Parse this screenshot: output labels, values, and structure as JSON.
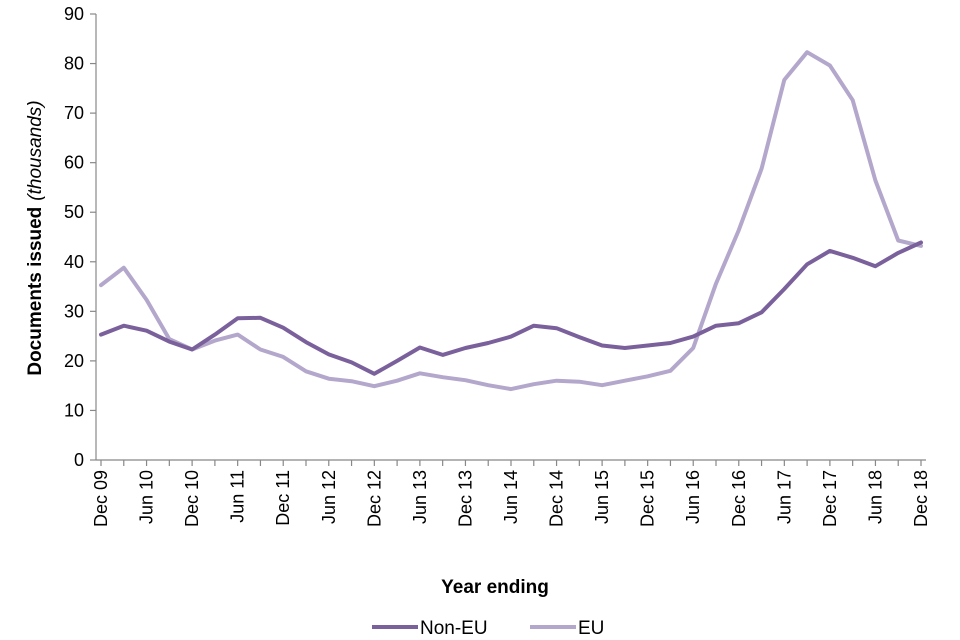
{
  "chart_data": {
    "type": "line",
    "title": "",
    "xlabel": "Year ending",
    "ylabel": "Documents issued",
    "ylabel_unit": "(thousands)",
    "ylim": [
      0,
      90
    ],
    "yticks": [
      0,
      10,
      20,
      30,
      40,
      50,
      60,
      70,
      80,
      90
    ],
    "grid": false,
    "legend_position": "bottom",
    "categories": [
      "Dec 09",
      "Mar 10",
      "Jun 10",
      "Sep 10",
      "Dec 10",
      "Mar 11",
      "Jun 11",
      "Sep 11",
      "Dec 11",
      "Mar 12",
      "Jun 12",
      "Sep 12",
      "Dec 12",
      "Mar 13",
      "Jun 13",
      "Sep 13",
      "Dec 13",
      "Mar 14",
      "Jun 14",
      "Sep 14",
      "Dec 14",
      "Mar 15",
      "Jun 15",
      "Sep 15",
      "Dec 15",
      "Mar 16",
      "Jun 16",
      "Sep 16",
      "Dec 16",
      "Mar 17",
      "Jun 17",
      "Sep 17",
      "Dec 17",
      "Mar 18",
      "Jun 18",
      "Sep 18",
      "Dec 18"
    ],
    "tick_labels": [
      "Dec 09",
      "Jun 10",
      "Dec 10",
      "Jun 11",
      "Dec 11",
      "Jun 12",
      "Dec 12",
      "Jun 13",
      "Dec 13",
      "Jun 14",
      "Dec 14",
      "Jun 15",
      "Dec 15",
      "Jun 16",
      "Dec 16",
      "Jun 17",
      "Dec 17",
      "Jun 18",
      "Dec 18"
    ],
    "series": [
      {
        "name": "Non-EU",
        "color": "#7b619c",
        "values": [
          25.3,
          27.1,
          26.1,
          23.9,
          22.3,
          25.3,
          28.6,
          28.7,
          26.7,
          23.8,
          21.3,
          19.7,
          17.4,
          20.0,
          22.7,
          21.2,
          22.6,
          23.6,
          24.9,
          27.1,
          26.6,
          24.8,
          23.1,
          22.6,
          23.1,
          23.6,
          24.9,
          27.1,
          27.6,
          29.8,
          34.5,
          39.5,
          42.2,
          40.8,
          39.1,
          41.8,
          43.9
        ]
      },
      {
        "name": "EU",
        "color": "#b4a7cc",
        "values": [
          35.3,
          38.8,
          32.3,
          24.4,
          22.3,
          24.1,
          25.3,
          22.3,
          20.8,
          17.9,
          16.4,
          15.9,
          14.9,
          16.0,
          17.5,
          16.7,
          16.1,
          15.1,
          14.3,
          15.3,
          16.0,
          15.8,
          15.1,
          16.0,
          16.9,
          18.0,
          22.6,
          35.6,
          46.4,
          58.8,
          76.7,
          82.3,
          79.6,
          72.6,
          56.4,
          44.3,
          43.2
        ]
      }
    ]
  }
}
